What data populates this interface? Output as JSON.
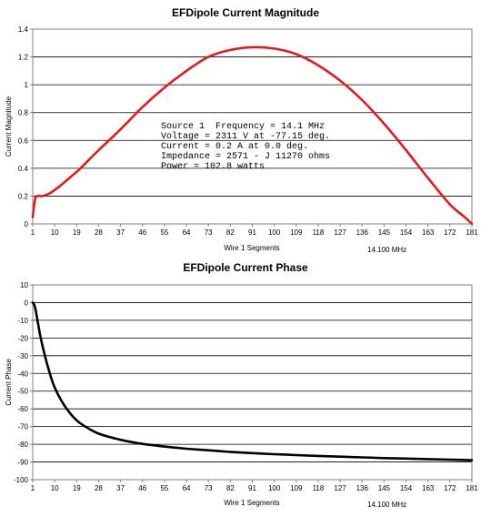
{
  "chart_data": [
    {
      "type": "line",
      "title": "EFDipole Current Magnitude",
      "xlabel": "Wire 1 Segments",
      "ylabel": "Current Magnitude",
      "xlim": [
        1,
        181
      ],
      "ylim": [
        0,
        1.4
      ],
      "grid": "horizontal",
      "x_ticks": [
        "1",
        "10",
        "19",
        "28",
        "37",
        "46",
        "55",
        "64",
        "73",
        "82",
        "91",
        "100",
        "109",
        "118",
        "127",
        "136",
        "145",
        "154",
        "163",
        "172",
        "181"
      ],
      "y_ticks": [
        "0",
        "0.2",
        "0.4",
        "0.6",
        "0.8",
        "1",
        "1.2",
        "1.4"
      ],
      "frequency_note": "14.100 MHz",
      "annotation": [
        "Source 1  Frequency = 14.1 MHz",
        "Voltage = 2311 V at -77.15 deg.",
        "Current = 0.2 A at 0.0 deg.",
        "Impedance = 2571 - J 11270 ohms",
        "Power = 102.8 watts"
      ],
      "series": [
        {
          "color": "#e31a1c",
          "x": [
            1,
            2,
            3,
            5,
            8,
            12,
            16,
            20,
            28,
            37,
            46,
            55,
            64,
            73,
            82,
            91,
            100,
            109,
            118,
            127,
            136,
            145,
            154,
            163,
            172,
            178,
            181
          ],
          "y": [
            0.05,
            0.18,
            0.2,
            0.2,
            0.22,
            0.27,
            0.33,
            0.39,
            0.53,
            0.68,
            0.84,
            0.98,
            1.1,
            1.2,
            1.25,
            1.27,
            1.26,
            1.22,
            1.14,
            1.03,
            0.89,
            0.72,
            0.53,
            0.33,
            0.14,
            0.05,
            0.0
          ]
        }
      ]
    },
    {
      "type": "line",
      "title": "EFDipole Current Phase",
      "xlabel": "Wire 1 Segments",
      "ylabel": "Current Phase",
      "xlim": [
        1,
        181
      ],
      "ylim": [
        -100,
        10
      ],
      "grid": "horizontal",
      "x_ticks": [
        "1",
        "10",
        "19",
        "28",
        "37",
        "46",
        "55",
        "64",
        "73",
        "82",
        "91",
        "100",
        "109",
        "118",
        "127",
        "136",
        "145",
        "154",
        "163",
        "172",
        "181"
      ],
      "y_ticks": [
        "10",
        "0",
        "-10",
        "-20",
        "-30",
        "-40",
        "-50",
        "-60",
        "-70",
        "-80",
        "-90",
        "-100"
      ],
      "frequency_note": "14.100 MHz",
      "series": [
        {
          "color": "#000000",
          "x": [
            1,
            2,
            4,
            6,
            8,
            10,
            13,
            16,
            19,
            22,
            28,
            37,
            46,
            55,
            64,
            73,
            82,
            91,
            100,
            109,
            118,
            127,
            136,
            145,
            154,
            163,
            172,
            181
          ],
          "y": [
            0,
            -3,
            -18,
            -30,
            -40,
            -48,
            -56,
            -62,
            -66.5,
            -69.5,
            -74,
            -77.5,
            -79.8,
            -81.3,
            -82.5,
            -83.4,
            -84.3,
            -85,
            -85.6,
            -86.1,
            -86.6,
            -87,
            -87.4,
            -87.8,
            -88.1,
            -88.4,
            -88.7,
            -89
          ]
        }
      ]
    }
  ]
}
